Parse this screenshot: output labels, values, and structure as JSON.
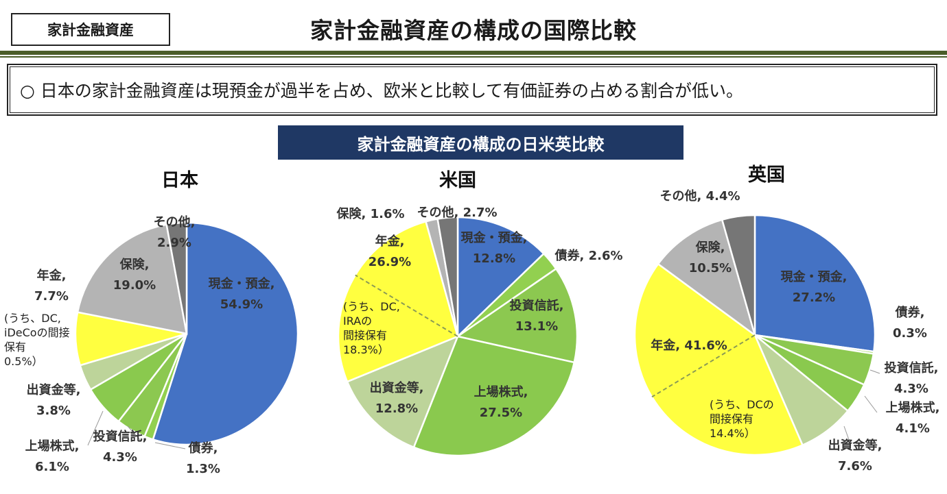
{
  "header": {
    "tag": "家計金融資産",
    "title": "家計金融資産の構成の国際比較"
  },
  "summary": "○ 日本の家計金融資産は現預金が過半を占め、欧米と比較して有価証券の占める割合が低い。",
  "subtitle": "家計金融資産の構成の日米英比較",
  "colors": {
    "cash": "#4472c4",
    "bond": "#92d050",
    "fund": "#8cc850",
    "stock": "#8ac94e",
    "equity": "#bdd49a",
    "pension": "#ffff40",
    "insurance": "#b4b4b4",
    "other": "#767676",
    "highlight": "#e8302f"
  },
  "chart_data": [
    {
      "type": "pie",
      "title": "日本",
      "slices": [
        {
          "name": "現金・預金",
          "value": 54.9,
          "label": [
            "現金・預金,",
            "54.9%"
          ]
        },
        {
          "name": "債券",
          "value": 1.3,
          "label": [
            "債券,",
            "1.3%"
          ]
        },
        {
          "name": "投資信託",
          "value": 4.3,
          "label": [
            "投資信託,",
            "4.3%"
          ]
        },
        {
          "name": "上場株式",
          "value": 6.1,
          "label": [
            "上場株式,",
            "6.1%"
          ]
        },
        {
          "name": "出資金等",
          "value": 3.8,
          "label": [
            "出資金等,",
            "3.8%"
          ]
        },
        {
          "name": "年金",
          "value": 7.7,
          "label": [
            "年金,",
            "7.7%"
          ]
        },
        {
          "name": "保険",
          "value": 19.0,
          "label": [
            "保険,",
            "19.0%"
          ]
        },
        {
          "name": "その他",
          "value": 2.9,
          "label": [
            "その他,",
            "2.9%"
          ]
        }
      ],
      "note": [
        "(うち、DC,",
        "iDeCoの間接",
        "保有",
        "0.5%）"
      ]
    },
    {
      "type": "pie",
      "title": "米国",
      "slices": [
        {
          "name": "現金・預金",
          "value": 12.8,
          "label": [
            "現金・預金,",
            "12.8%"
          ]
        },
        {
          "name": "債券",
          "value": 2.6,
          "label": [
            "債券, 2.6%"
          ]
        },
        {
          "name": "投資信託",
          "value": 13.1,
          "label": [
            "投資信託,",
            "13.1%"
          ]
        },
        {
          "name": "上場株式",
          "value": 27.5,
          "label": [
            "上場株式,",
            "27.5%"
          ]
        },
        {
          "name": "出資金等",
          "value": 12.8,
          "label": [
            "出資金等,",
            "12.8%"
          ]
        },
        {
          "name": "年金",
          "value": 26.9,
          "label": [
            "年金,",
            "26.9%"
          ]
        },
        {
          "name": "保険",
          "value": 1.6,
          "label": [
            "保険, 1.6%"
          ]
        },
        {
          "name": "その他",
          "value": 2.7,
          "label": [
            "その他, 2.7%"
          ]
        }
      ],
      "note": [
        "(うち、DC,",
        "IRAの",
        "間接保有",
        "18.3%）"
      ]
    },
    {
      "type": "pie",
      "title": "英国",
      "slices": [
        {
          "name": "現金・預金",
          "value": 27.2,
          "label": [
            "現金・預金,",
            "27.2%"
          ]
        },
        {
          "name": "債券",
          "value": 0.3,
          "label": [
            "債券,",
            "0.3%"
          ]
        },
        {
          "name": "投資信託",
          "value": 4.3,
          "label": [
            "投資信託,",
            "4.3%"
          ]
        },
        {
          "name": "上場株式",
          "value": 4.1,
          "label": [
            "上場株式,",
            "4.1%"
          ]
        },
        {
          "name": "出資金等",
          "value": 7.6,
          "label": [
            "出資金等,",
            "7.6%"
          ]
        },
        {
          "name": "年金",
          "value": 41.6,
          "label": [
            "年金, 41.6%"
          ]
        },
        {
          "name": "保険",
          "value": 10.5,
          "label": [
            "保険,",
            "10.5%"
          ]
        },
        {
          "name": "その他",
          "value": 4.4,
          "label": [
            "その他, 4.4%"
          ]
        }
      ],
      "note": [
        "(うち、DCの",
        "間接保有",
        "14.4%）"
      ]
    }
  ]
}
